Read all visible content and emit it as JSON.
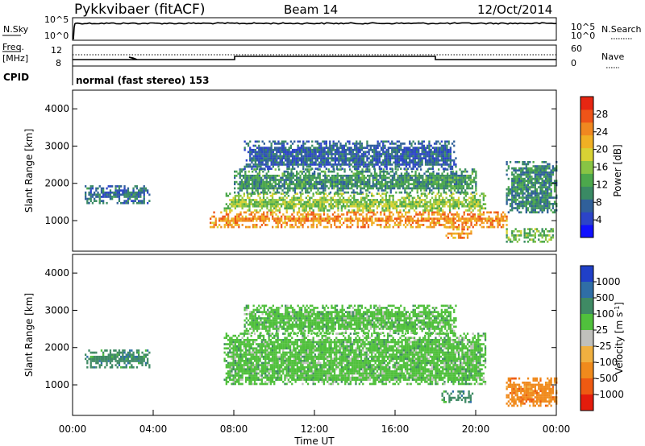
{
  "header": {
    "radar": "Pykkvibaer (fitACF)",
    "beam": "Beam 14",
    "date": "12/Oct/2014"
  },
  "top_panels": {
    "nsky_label": "N.Sky",
    "nsky_ticks": [
      "10^5",
      "10^0"
    ],
    "nsky_right_ticks": [
      "10^5",
      "10^0"
    ],
    "nsearch_label": "N.Search",
    "freq_label_1": "Freq.",
    "freq_label_2": "[MHz]",
    "freq_ticks": [
      "12",
      "8"
    ],
    "nave_ticks": [
      "60",
      "0"
    ],
    "nave_label": "Nave",
    "cpid_label": "CPID",
    "cpid_text": "normal (fast stereo) 153"
  },
  "chart_data": [
    {
      "type": "heatmap",
      "name": "power",
      "ylabel": "Slant Range [km]",
      "ylim": [
        180,
        4500
      ],
      "yticks": [
        1000,
        2000,
        3000,
        4000
      ],
      "xlim": [
        0,
        24
      ],
      "colorbar_label": "Power [dB]",
      "colorbar_ticks": [
        4,
        8,
        12,
        16,
        20,
        24,
        28
      ],
      "colorbar_range": [
        0,
        32
      ],
      "colorbar_colors": [
        "#1010ff",
        "#2c44c8",
        "#30609a",
        "#3a8a64",
        "#4ca84c",
        "#88c444",
        "#d8d234",
        "#f0b024",
        "#f08820",
        "#ee5418",
        "#e62612"
      ],
      "regions": [
        {
          "t": [
            0.6,
            3.8
          ],
          "r": [
            1500,
            1950
          ],
          "v": 8
        },
        {
          "t": [
            6.8,
            21.5
          ],
          "r": [
            850,
            1250
          ],
          "v": 24
        },
        {
          "t": [
            7.5,
            20.5
          ],
          "r": [
            1250,
            1750
          ],
          "v": 16
        },
        {
          "t": [
            8.0,
            20.0
          ],
          "r": [
            1750,
            2400
          ],
          "v": 11
        },
        {
          "t": [
            8.5,
            19.0
          ],
          "r": [
            2400,
            3150
          ],
          "v": 7
        },
        {
          "t": [
            18.5,
            19.8
          ],
          "r": [
            550,
            850
          ],
          "v": 24
        },
        {
          "t": [
            21.5,
            23.8
          ],
          "r": [
            450,
            800
          ],
          "v": 14
        },
        {
          "t": [
            21.5,
            24.0
          ],
          "r": [
            1200,
            2600
          ],
          "v": 10
        }
      ]
    },
    {
      "type": "heatmap",
      "name": "velocity",
      "ylabel": "Slant Range [km]",
      "ylim": [
        180,
        4500
      ],
      "yticks": [
        1000,
        2000,
        3000,
        4000
      ],
      "xlim": [
        0,
        24
      ],
      "xticks": [
        "00:00",
        "04:00",
        "08:00",
        "12:00",
        "16:00",
        "20:00",
        "00:00"
      ],
      "xlabel": "Time UT",
      "colorbar_label": "Velocity [m s^-1]",
      "colorbar_ticks": [
        "1000",
        "500",
        "100",
        "25",
        "-25",
        "-100",
        "-500",
        "-1000"
      ],
      "colorbar_colors": [
        "#2040c8",
        "#2f6ea6",
        "#3f8a64",
        "#50c03c",
        "#c0c0bc",
        "#f0b040",
        "#f08a1c",
        "#ee5a12",
        "#e41c0c"
      ],
      "regions": [
        {
          "t": [
            0.6,
            3.8
          ],
          "r": [
            1500,
            1950
          ],
          "v": "100"
        },
        {
          "t": [
            7.5,
            20.5
          ],
          "r": [
            1000,
            2400
          ],
          "v": "25"
        },
        {
          "t": [
            8.5,
            19.0
          ],
          "r": [
            2400,
            3150
          ],
          "v": "25"
        },
        {
          "t": [
            18.3,
            19.8
          ],
          "r": [
            550,
            850
          ],
          "v": "100"
        },
        {
          "t": [
            21.5,
            24.0
          ],
          "r": [
            450,
            1200
          ],
          "v": "-500"
        }
      ]
    }
  ]
}
